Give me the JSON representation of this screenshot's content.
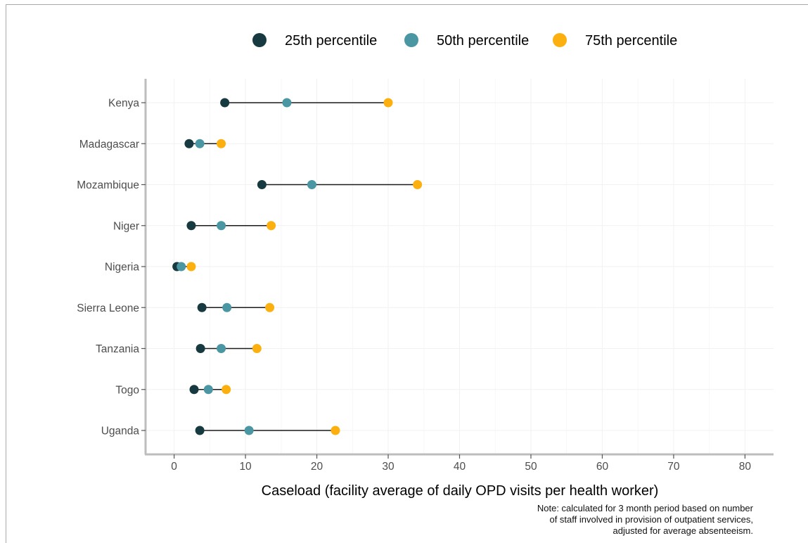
{
  "chart_data": {
    "type": "dumbbell",
    "categories": [
      "Kenya",
      "Madagascar",
      "Mozambique",
      "Niger",
      "Nigeria",
      "Sierra Leone",
      "Tanzania",
      "Togo",
      "Uganda"
    ],
    "series": [
      {
        "name": "25th percentile",
        "color": "#173a40",
        "values": [
          7.1,
          2.1,
          12.3,
          2.4,
          0.4,
          3.9,
          3.7,
          2.8,
          3.6
        ]
      },
      {
        "name": "50th percentile",
        "color": "#4a96a3",
        "values": [
          15.8,
          3.6,
          19.3,
          6.6,
          1.0,
          7.4,
          6.6,
          4.8,
          10.5
        ]
      },
      {
        "name": "75th percentile",
        "color": "#fbb00f",
        "values": [
          30.0,
          6.6,
          34.1,
          13.6,
          2.4,
          13.4,
          11.6,
          7.3,
          22.6
        ]
      }
    ],
    "xlabel": "Caseload (facility average of daily OPD visits per health worker)",
    "ylabel": "",
    "xlim": [
      -4,
      84
    ],
    "xticks": [
      0,
      10,
      20,
      30,
      40,
      50,
      60,
      70,
      80
    ],
    "legend": "top",
    "grid": true
  },
  "note": {
    "lines": [
      "Note: calculated for 3 month period based on number",
      "of staff involved in provision of outpatient services,",
      "adjusted for average absenteeism."
    ]
  }
}
